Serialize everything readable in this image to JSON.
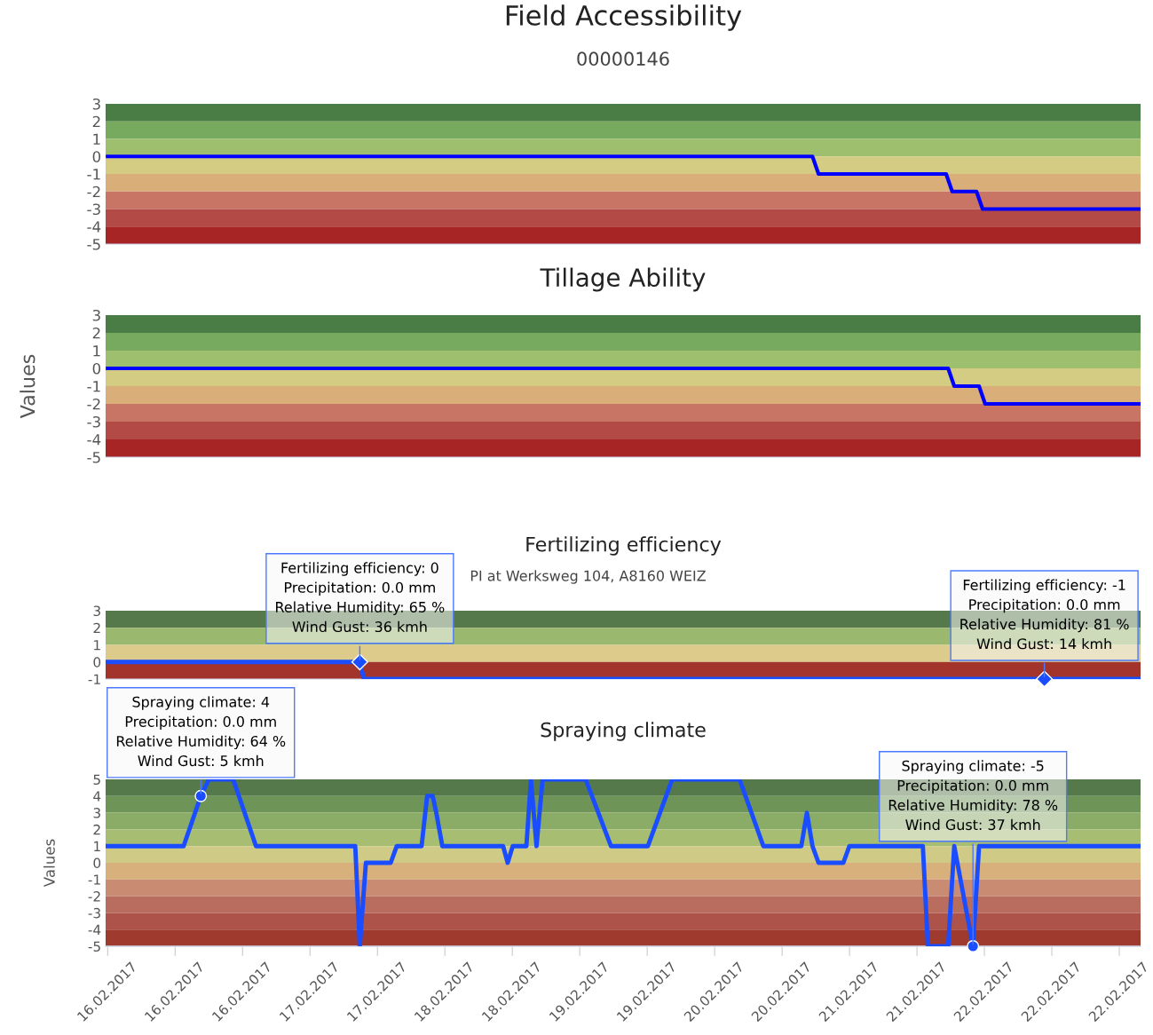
{
  "chart_data": [
    {
      "type": "line",
      "title": "Field Accessibility",
      "subtitle": "00000146",
      "tick_labels": "y",
      "xlim": [
        "2017-02-15T23:40",
        "2017-02-23T02:00"
      ],
      "ylim": [
        -5,
        3
      ],
      "yticks": [
        -5,
        -4,
        -3,
        -2,
        -1,
        0,
        1,
        2,
        3
      ],
      "grid": false,
      "legend": false,
      "bands": [
        {
          "axis": "y",
          "from": 2,
          "to": 3,
          "color": "#4a7c45"
        },
        {
          "axis": "y",
          "from": 1,
          "to": 2,
          "color": "#77a95f"
        },
        {
          "axis": "y",
          "from": 0,
          "to": 1,
          "color": "#9dbf6e"
        },
        {
          "axis": "y",
          "from": -1,
          "to": 0,
          "color": "#d4cc82"
        },
        {
          "axis": "y",
          "from": -2,
          "to": -1,
          "color": "#d9ae78"
        },
        {
          "axis": "y",
          "from": -3,
          "to": -2,
          "color": "#c97565"
        },
        {
          "axis": "y",
          "from": -4,
          "to": -3,
          "color": "#b44a46"
        },
        {
          "axis": "y",
          "from": -5,
          "to": -4,
          "color": "#a82525"
        }
      ],
      "series": [
        {
          "color": "#0000ff",
          "x": [
            "2017-02-16T00:00",
            "2017-02-20T20:00",
            "2017-02-20T21:00",
            "2017-02-21T18:00",
            "2017-02-21T19:00",
            "2017-02-21T23:00",
            "2017-02-22T00:00",
            "2017-02-23T02:00"
          ],
          "values": [
            0,
            0,
            -1,
            -1,
            -2,
            -2,
            -3,
            -3
          ]
        }
      ]
    },
    {
      "type": "line",
      "title": "Tillage Ability",
      "ylabel": "Values",
      "tick_labels": "y",
      "xlim": [
        "2017-02-15T23:40",
        "2017-02-23T02:00"
      ],
      "ylim": [
        -5,
        3
      ],
      "yticks": [
        -5,
        -4,
        -3,
        -2,
        -1,
        0,
        1,
        2,
        3
      ],
      "grid": false,
      "legend": false,
      "bands": [
        {
          "axis": "y",
          "from": 2,
          "to": 3,
          "color": "#4a7c45"
        },
        {
          "axis": "y",
          "from": 1,
          "to": 2,
          "color": "#77a95f"
        },
        {
          "axis": "y",
          "from": 0,
          "to": 1,
          "color": "#9dbf6e"
        },
        {
          "axis": "y",
          "from": -1,
          "to": 0,
          "color": "#d4cc82"
        },
        {
          "axis": "y",
          "from": -2,
          "to": -1,
          "color": "#d9ae78"
        },
        {
          "axis": "y",
          "from": -3,
          "to": -2,
          "color": "#c97565"
        },
        {
          "axis": "y",
          "from": -4,
          "to": -3,
          "color": "#b44a46"
        },
        {
          "axis": "y",
          "from": -5,
          "to": -4,
          "color": "#a82525"
        }
      ],
      "series": [
        {
          "color": "#0000ff",
          "x": [
            "2017-02-16T00:00",
            "2017-02-21T18:20",
            "2017-02-21T19:20",
            "2017-02-21T23:25",
            "2017-02-22T00:25",
            "2017-02-23T02:00"
          ],
          "values": [
            0,
            0,
            -1,
            -1,
            -2,
            -2
          ]
        }
      ]
    },
    {
      "type": "line",
      "title": "Fertilizing efficiency",
      "subtitle": "PI at Werksweg 104, A8160 WEIZ",
      "tick_labels": "y",
      "xlim": [
        "2017-02-15T23:40",
        "2017-02-23T02:00"
      ],
      "ylim": [
        -1,
        3
      ],
      "yticks": [
        -1,
        0,
        1,
        2,
        3
      ],
      "grid": false,
      "legend": false,
      "bands": [
        {
          "axis": "y",
          "from": 2,
          "to": 3,
          "color": "#55794a"
        },
        {
          "axis": "y",
          "from": 1,
          "to": 2,
          "color": "#9bb86f"
        },
        {
          "axis": "y",
          "from": 0,
          "to": 1,
          "color": "#dccb8a"
        },
        {
          "axis": "y",
          "from": -1,
          "to": 0,
          "color": "#a3342c"
        }
      ],
      "series": [
        {
          "color": "#1a4dff",
          "x": [
            "2017-02-16T00:00",
            "2017-02-17T17:30",
            "2017-02-17T18:10",
            "2017-02-22T10:10",
            "2017-02-23T02:00"
          ],
          "values": [
            0,
            0,
            -1,
            -1,
            -1
          ]
        }
      ],
      "annotations": [
        {
          "text": "Fertilizing efficiency: 0\nPrecipitation: 0.0 mm\nRelative Humidity: 65 %\nWind Gust: 36 kmh",
          "x": "2017-02-17T17:30",
          "y": 0
        },
        {
          "text": "Fertilizing efficiency: -1\nPrecipitation: 0.0 mm\nRelative Humidity: 81 %\nWind Gust: 14 kmh",
          "x": "2017-02-22T10:10",
          "y": -1
        }
      ]
    },
    {
      "type": "line",
      "title": "Spraying climate",
      "ylabel": "Values",
      "xlim": [
        "2017-02-15T23:40",
        "2017-02-23T02:00"
      ],
      "ylim": [
        -5,
        5
      ],
      "yticks": [
        -5,
        -4,
        -3,
        -2,
        -1,
        0,
        1,
        2,
        3,
        4,
        5
      ],
      "grid": false,
      "legend": false,
      "xticks": [
        {
          "value": "2017-02-16T00:00",
          "label": "16.02.2017"
        },
        {
          "value": "2017-02-16T11:06",
          "label": "16.02.2017"
        },
        {
          "value": "2017-02-16T22:12",
          "label": "16.02.2017"
        },
        {
          "value": "2017-02-17T09:18",
          "label": "17.02.2017"
        },
        {
          "value": "2017-02-17T20:24",
          "label": "17.02.2017"
        },
        {
          "value": "2017-02-18T07:30",
          "label": "18.02.2017"
        },
        {
          "value": "2017-02-18T18:36",
          "label": "18.02.2017"
        },
        {
          "value": "2017-02-19T05:42",
          "label": "19.02.2017"
        },
        {
          "value": "2017-02-19T16:48",
          "label": "19.02.2017"
        },
        {
          "value": "2017-02-20T03:54",
          "label": "20.02.2017"
        },
        {
          "value": "2017-02-20T15:00",
          "label": "20.02.2017"
        },
        {
          "value": "2017-02-21T02:06",
          "label": "21.02.2017"
        },
        {
          "value": "2017-02-21T13:12",
          "label": "21.02.2017"
        },
        {
          "value": "2017-02-22T00:18",
          "label": "22.02.2017"
        },
        {
          "value": "2017-02-22T11:24",
          "label": "22.02.2017"
        },
        {
          "value": "2017-02-22T22:30",
          "label": "22.02.2017"
        }
      ],
      "bands": [
        {
          "axis": "y",
          "from": 4,
          "to": 5,
          "color": "#55794a"
        },
        {
          "axis": "y",
          "from": 3,
          "to": 4,
          "color": "#6e9457"
        },
        {
          "axis": "y",
          "from": 2,
          "to": 3,
          "color": "#8aac66"
        },
        {
          "axis": "y",
          "from": 1,
          "to": 2,
          "color": "#a7bd72"
        },
        {
          "axis": "y",
          "from": 0,
          "to": 1,
          "color": "#cfca86"
        },
        {
          "axis": "y",
          "from": -1,
          "to": 0,
          "color": "#d8b07c"
        },
        {
          "axis": "y",
          "from": -2,
          "to": -1,
          "color": "#c98c72"
        },
        {
          "axis": "y",
          "from": -3,
          "to": -2,
          "color": "#b86d5f"
        },
        {
          "axis": "y",
          "from": -4,
          "to": -3,
          "color": "#ad5349"
        },
        {
          "axis": "y",
          "from": -5,
          "to": -4,
          "color": "#9f3a2f"
        }
      ],
      "series": [
        {
          "color": "#1a4dff",
          "x": [
            "2017-02-16T00:00",
            "2017-02-16T12:30",
            "2017-02-16T15:20",
            "2017-02-16T16:40",
            "2017-02-16T20:40",
            "2017-02-17T00:25",
            "2017-02-17T16:45",
            "2017-02-17T17:30",
            "2017-02-17T18:30",
            "2017-02-17T22:35",
            "2017-02-17T23:35",
            "2017-02-18T03:40",
            "2017-02-18T04:35",
            "2017-02-18T05:30",
            "2017-02-18T06:05",
            "2017-02-18T07:05",
            "2017-02-18T17:05",
            "2017-02-18T17:50",
            "2017-02-18T18:40",
            "2017-02-18T20:55",
            "2017-02-18T21:40",
            "2017-02-18T22:35",
            "2017-02-18T23:35",
            "2017-02-19T06:40",
            "2017-02-19T10:50",
            "2017-02-19T16:55",
            "2017-02-19T20:55",
            "2017-02-20T08:00",
            "2017-02-20T11:55",
            "2017-02-20T18:10",
            "2017-02-20T19:05",
            "2017-02-20T20:00",
            "2017-02-20T21:00",
            "2017-02-21T01:05",
            "2017-02-21T02:05",
            "2017-02-21T14:10",
            "2017-02-21T15:00",
            "2017-02-21T18:20",
            "2017-02-21T19:20",
            "2017-02-21T22:25",
            "2017-02-21T23:25",
            "2017-02-23T01:40"
          ],
          "values": [
            1,
            1,
            4,
            5,
            5,
            1,
            1,
            -5,
            0,
            0,
            1,
            1,
            4,
            4,
            3,
            1,
            1,
            0,
            1,
            1,
            5,
            1,
            5,
            5,
            1,
            1,
            5,
            5,
            1,
            1,
            3,
            1,
            0,
            0,
            1,
            1,
            -5,
            -5,
            1,
            -5,
            1,
            1
          ]
        }
      ],
      "annotations": [
        {
          "text": "Spraying climate: 4\nPrecipitation: 0.0 mm\nRelative Humidity: 64 %\nWind Gust: 5 kmh",
          "x": "2017-02-16T15:20",
          "y": 4
        },
        {
          "text": "Spraying climate: -5\nPrecipitation: 0.0 mm\nRelative Humidity: 78 %\nWind Gust: 37 kmh",
          "x": "2017-02-21T22:25",
          "y": -5
        }
      ]
    }
  ]
}
